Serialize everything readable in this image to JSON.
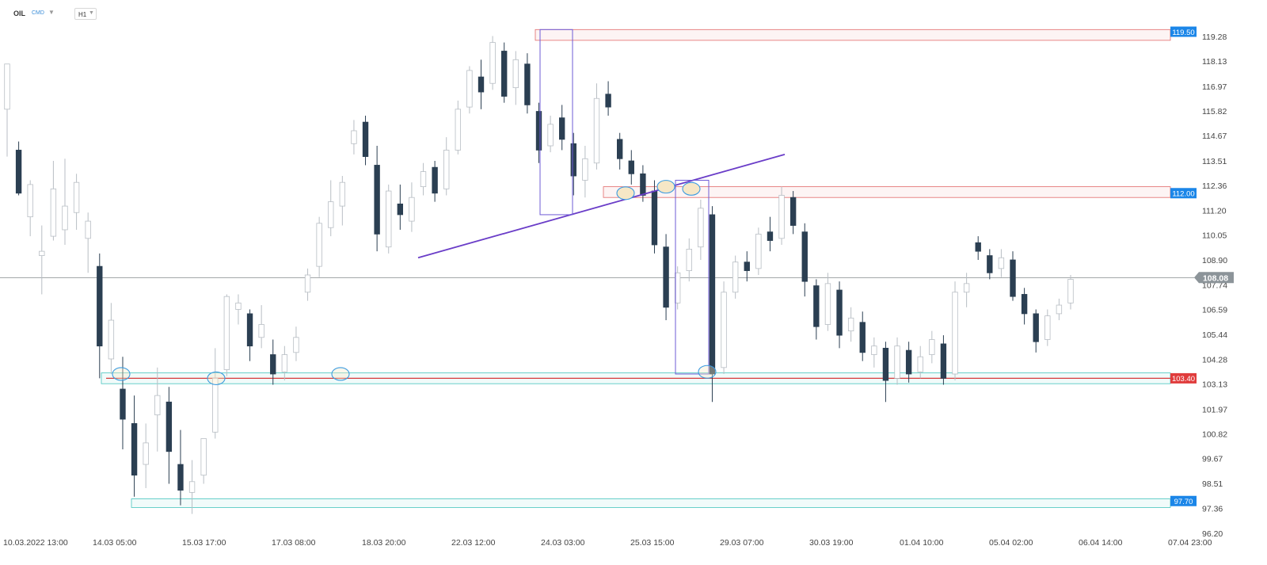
{
  "toolbar": {
    "symbol": "OIL",
    "instrument_type": "CMD",
    "interval": "H1"
  },
  "colors": {
    "up": "#b8bec4",
    "down": "#2b3f52",
    "resistance": "#e26a6a",
    "support": "#45c4bd",
    "trendline": "#6a3dc8",
    "rect": "#6e5bd6",
    "ellipse_fill": "#f6e7c6",
    "ellipse_stroke": "#3b9be0",
    "support_line": "#d63b3b",
    "blue_label": "#1b86e8",
    "red_label": "#e03c3c",
    "grey_label": "#8c9499"
  },
  "chart_data": {
    "type": "candlestick",
    "title": "",
    "xlabel": "",
    "ylabel": "",
    "ylim": [
      96.2,
      120.0
    ],
    "y_ticks": [
      "119.28",
      "118.13",
      "116.97",
      "115.82",
      "114.67",
      "113.51",
      "112.36",
      "111.20",
      "110.05",
      "108.90",
      "107.74",
      "106.59",
      "105.44",
      "104.28",
      "103.13",
      "101.97",
      "100.82",
      "99.67",
      "98.51",
      "97.36",
      "96.20"
    ],
    "x_ticks": [
      "10.03.2022  13:00",
      "14.03  05:00",
      "15.03  17:00",
      "17.03  08:00",
      "18.03  20:00",
      "22.03  12:00",
      "24.03  03:00",
      "25.03  15:00",
      "29.03  07:00",
      "30.03  19:00",
      "01.04  10:00",
      "05.04  02:00",
      "06.04  14:00",
      "07.04  23:00"
    ],
    "current_price": "108.08",
    "levels": [
      {
        "label": "119.50",
        "value": 119.5,
        "kind": "resistance_zone",
        "from": 119.1,
        "to": 119.6
      },
      {
        "label": "112.00",
        "value": 112.0,
        "kind": "resistance_zone",
        "from": 111.8,
        "to": 112.3
      },
      {
        "label": "103.40",
        "value": 103.4,
        "kind": "support_line",
        "from": 103.15,
        "to": 103.65
      },
      {
        "label": "97.70",
        "value": 97.7,
        "kind": "support_zone",
        "from": 97.4,
        "to": 97.8
      }
    ],
    "trendline": {
      "from": {
        "x": "20.03 22:00",
        "y": 109.0
      },
      "to": {
        "x": "29.03 10:00",
        "y": 113.8
      }
    },
    "candles": [
      {
        "i": 0,
        "open": 115.9,
        "high": 118.0,
        "low": 113.7,
        "close": 118.0
      },
      {
        "i": 1,
        "open": 114.0,
        "high": 114.4,
        "low": 111.9,
        "close": 112.0
      },
      {
        "i": 2,
        "open": 110.9,
        "high": 112.6,
        "low": 110.0,
        "close": 112.4
      },
      {
        "i": 3,
        "open": 109.1,
        "high": 110.5,
        "low": 107.3,
        "close": 109.3
      },
      {
        "i": 4,
        "open": 110.0,
        "high": 113.5,
        "low": 109.8,
        "close": 112.2
      },
      {
        "i": 5,
        "open": 110.3,
        "high": 113.6,
        "low": 109.6,
        "close": 111.4
      },
      {
        "i": 6,
        "open": 111.1,
        "high": 112.9,
        "low": 110.3,
        "close": 112.5
      },
      {
        "i": 7,
        "open": 109.9,
        "high": 111.1,
        "low": 108.3,
        "close": 110.7
      },
      {
        "i": 8,
        "open": 108.6,
        "high": 109.2,
        "low": 103.4,
        "close": 104.9
      },
      {
        "i": 9,
        "open": 104.3,
        "high": 106.9,
        "low": 103.6,
        "close": 106.1
      },
      {
        "i": 10,
        "open": 102.9,
        "high": 104.4,
        "low": 100.1,
        "close": 101.5
      },
      {
        "i": 11,
        "open": 101.3,
        "high": 102.6,
        "low": 97.9,
        "close": 98.9
      },
      {
        "i": 12,
        "open": 99.4,
        "high": 101.3,
        "low": 98.3,
        "close": 100.4
      },
      {
        "i": 13,
        "open": 101.7,
        "high": 103.9,
        "low": 100.0,
        "close": 102.6
      },
      {
        "i": 14,
        "open": 102.3,
        "high": 103.0,
        "low": 98.5,
        "close": 100.0
      },
      {
        "i": 15,
        "open": 99.4,
        "high": 101.0,
        "low": 97.5,
        "close": 98.2
      },
      {
        "i": 16,
        "open": 98.1,
        "high": 99.6,
        "low": 97.1,
        "close": 98.6
      },
      {
        "i": 17,
        "open": 98.9,
        "high": 100.6,
        "low": 98.5,
        "close": 100.6
      },
      {
        "i": 18,
        "open": 100.9,
        "high": 104.8,
        "low": 100.6,
        "close": 103.4
      },
      {
        "i": 19,
        "open": 103.8,
        "high": 107.3,
        "low": 103.5,
        "close": 107.2
      },
      {
        "i": 20,
        "open": 106.6,
        "high": 107.3,
        "low": 105.9,
        "close": 106.9
      },
      {
        "i": 21,
        "open": 106.4,
        "high": 106.6,
        "low": 104.2,
        "close": 104.9
      },
      {
        "i": 22,
        "open": 105.3,
        "high": 106.8,
        "low": 104.8,
        "close": 105.9
      },
      {
        "i": 23,
        "open": 104.5,
        "high": 105.2,
        "low": 103.1,
        "close": 103.6
      },
      {
        "i": 24,
        "open": 103.7,
        "high": 104.9,
        "low": 103.3,
        "close": 104.5
      },
      {
        "i": 25,
        "open": 104.6,
        "high": 105.8,
        "low": 104.2,
        "close": 105.3
      },
      {
        "i": 26,
        "open": 107.4,
        "high": 108.5,
        "low": 107.0,
        "close": 108.2
      },
      {
        "i": 27,
        "open": 108.6,
        "high": 110.9,
        "low": 108.1,
        "close": 110.6
      },
      {
        "i": 28,
        "open": 110.4,
        "high": 112.6,
        "low": 110.0,
        "close": 111.6
      },
      {
        "i": 29,
        "open": 111.4,
        "high": 112.8,
        "low": 110.5,
        "close": 112.5
      },
      {
        "i": 30,
        "open": 114.3,
        "high": 115.4,
        "low": 113.8,
        "close": 114.9
      },
      {
        "i": 31,
        "open": 115.3,
        "high": 115.6,
        "low": 113.3,
        "close": 113.7
      },
      {
        "i": 32,
        "open": 113.3,
        "high": 114.2,
        "low": 109.3,
        "close": 110.1
      },
      {
        "i": 33,
        "open": 109.5,
        "high": 112.4,
        "low": 109.2,
        "close": 112.1
      },
      {
        "i": 34,
        "open": 111.5,
        "high": 112.4,
        "low": 110.3,
        "close": 111.0
      },
      {
        "i": 35,
        "open": 110.7,
        "high": 112.5,
        "low": 110.2,
        "close": 111.8
      },
      {
        "i": 36,
        "open": 112.3,
        "high": 113.4,
        "low": 111.9,
        "close": 113.0
      },
      {
        "i": 37,
        "open": 113.2,
        "high": 113.5,
        "low": 111.6,
        "close": 112.0
      },
      {
        "i": 38,
        "open": 112.2,
        "high": 114.6,
        "low": 111.9,
        "close": 114.0
      },
      {
        "i": 39,
        "open": 114.0,
        "high": 116.3,
        "low": 113.8,
        "close": 115.9
      },
      {
        "i": 40,
        "open": 116.0,
        "high": 117.9,
        "low": 115.7,
        "close": 117.7
      },
      {
        "i": 41,
        "open": 117.4,
        "high": 118.2,
        "low": 115.9,
        "close": 116.7
      },
      {
        "i": 42,
        "open": 117.1,
        "high": 119.3,
        "low": 116.8,
        "close": 119.0
      },
      {
        "i": 43,
        "open": 118.6,
        "high": 119.0,
        "low": 116.2,
        "close": 116.5
      },
      {
        "i": 44,
        "open": 116.9,
        "high": 118.6,
        "low": 116.1,
        "close": 118.2
      },
      {
        "i": 45,
        "open": 118.0,
        "high": 118.5,
        "low": 115.7,
        "close": 116.1
      },
      {
        "i": 46,
        "open": 115.8,
        "high": 116.2,
        "low": 113.4,
        "close": 114.0
      },
      {
        "i": 47,
        "open": 114.2,
        "high": 115.6,
        "low": 113.9,
        "close": 115.2
      },
      {
        "i": 48,
        "open": 115.5,
        "high": 116.1,
        "low": 114.0,
        "close": 114.5
      },
      {
        "i": 49,
        "open": 114.3,
        "high": 114.8,
        "low": 111.9,
        "close": 112.8
      },
      {
        "i": 50,
        "open": 112.6,
        "high": 114.2,
        "low": 111.8,
        "close": 113.6
      },
      {
        "i": 51,
        "open": 113.4,
        "high": 117.1,
        "low": 113.1,
        "close": 116.4
      },
      {
        "i": 52,
        "open": 116.6,
        "high": 117.2,
        "low": 115.6,
        "close": 116.0
      },
      {
        "i": 53,
        "open": 114.5,
        "high": 114.8,
        "low": 113.1,
        "close": 113.6
      },
      {
        "i": 54,
        "open": 113.5,
        "high": 114.0,
        "low": 112.4,
        "close": 112.9
      },
      {
        "i": 55,
        "open": 112.9,
        "high": 113.3,
        "low": 111.6,
        "close": 111.9
      },
      {
        "i": 56,
        "open": 112.1,
        "high": 112.6,
        "low": 109.2,
        "close": 109.6
      },
      {
        "i": 57,
        "open": 109.5,
        "high": 110.1,
        "low": 106.1,
        "close": 106.7
      },
      {
        "i": 58,
        "open": 106.9,
        "high": 108.6,
        "low": 106.6,
        "close": 108.3
      },
      {
        "i": 59,
        "open": 108.4,
        "high": 109.9,
        "low": 107.9,
        "close": 109.4
      },
      {
        "i": 60,
        "open": 109.5,
        "high": 111.7,
        "low": 108.9,
        "close": 111.3
      },
      {
        "i": 61,
        "open": 111.0,
        "high": 111.4,
        "low": 102.3,
        "close": 103.6
      },
      {
        "i": 62,
        "open": 103.9,
        "high": 107.9,
        "low": 103.6,
        "close": 107.4
      },
      {
        "i": 63,
        "open": 107.4,
        "high": 109.1,
        "low": 107.1,
        "close": 108.8
      },
      {
        "i": 64,
        "open": 108.8,
        "high": 109.3,
        "low": 107.9,
        "close": 108.4
      },
      {
        "i": 65,
        "open": 108.5,
        "high": 110.4,
        "low": 108.2,
        "close": 110.1
      },
      {
        "i": 66,
        "open": 110.2,
        "high": 110.9,
        "low": 109.3,
        "close": 109.8
      },
      {
        "i": 67,
        "open": 109.9,
        "high": 112.3,
        "low": 109.6,
        "close": 111.9
      },
      {
        "i": 68,
        "open": 111.8,
        "high": 112.1,
        "low": 110.1,
        "close": 110.5
      },
      {
        "i": 69,
        "open": 110.2,
        "high": 110.6,
        "low": 107.2,
        "close": 107.9
      },
      {
        "i": 70,
        "open": 107.7,
        "high": 108.0,
        "low": 105.2,
        "close": 105.8
      },
      {
        "i": 71,
        "open": 105.9,
        "high": 108.3,
        "low": 105.6,
        "close": 107.8
      },
      {
        "i": 72,
        "open": 107.5,
        "high": 107.9,
        "low": 104.8,
        "close": 105.4
      },
      {
        "i": 73,
        "open": 105.6,
        "high": 106.7,
        "low": 105.1,
        "close": 106.2
      },
      {
        "i": 74,
        "open": 106.0,
        "high": 106.5,
        "low": 104.2,
        "close": 104.6
      },
      {
        "i": 75,
        "open": 104.5,
        "high": 105.3,
        "low": 103.9,
        "close": 104.9
      },
      {
        "i": 76,
        "open": 104.8,
        "high": 105.1,
        "low": 102.3,
        "close": 103.3
      },
      {
        "i": 77,
        "open": 103.4,
        "high": 105.3,
        "low": 103.1,
        "close": 104.9
      },
      {
        "i": 78,
        "open": 104.7,
        "high": 105.1,
        "low": 103.2,
        "close": 103.6
      },
      {
        "i": 79,
        "open": 103.7,
        "high": 104.9,
        "low": 103.4,
        "close": 104.4
      },
      {
        "i": 80,
        "open": 104.5,
        "high": 105.6,
        "low": 104.1,
        "close": 105.2
      },
      {
        "i": 81,
        "open": 105.0,
        "high": 105.4,
        "low": 103.1,
        "close": 103.4
      },
      {
        "i": 82,
        "open": 103.6,
        "high": 107.9,
        "low": 103.3,
        "close": 107.4
      },
      {
        "i": 83,
        "open": 107.4,
        "high": 108.3,
        "low": 106.7,
        "close": 107.8
      },
      {
        "i": 84,
        "open": 109.7,
        "high": 110.0,
        "low": 108.9,
        "close": 109.3
      },
      {
        "i": 85,
        "open": 109.1,
        "high": 109.4,
        "low": 108.0,
        "close": 108.3
      },
      {
        "i": 86,
        "open": 108.5,
        "high": 109.4,
        "low": 108.1,
        "close": 109.0
      },
      {
        "i": 87,
        "open": 108.9,
        "high": 109.3,
        "low": 107.0,
        "close": 107.2
      },
      {
        "i": 88,
        "open": 107.3,
        "high": 107.6,
        "low": 105.9,
        "close": 106.4
      },
      {
        "i": 89,
        "open": 106.4,
        "high": 106.6,
        "low": 104.6,
        "close": 105.1
      },
      {
        "i": 90,
        "open": 105.2,
        "high": 106.6,
        "low": 104.9,
        "close": 106.3
      },
      {
        "i": 91,
        "open": 106.4,
        "high": 107.1,
        "low": 106.1,
        "close": 106.8
      },
      {
        "i": 92,
        "open": 106.9,
        "high": 108.2,
        "low": 106.6,
        "close": 108.0
      }
    ]
  }
}
